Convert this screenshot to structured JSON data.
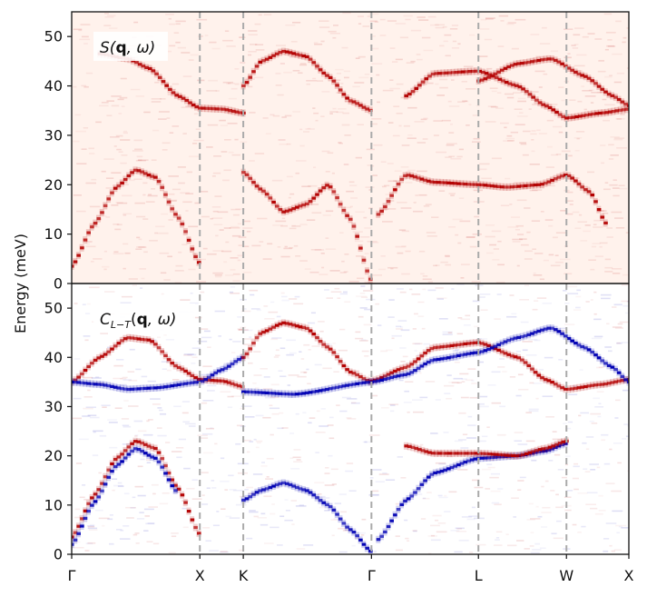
{
  "figure": {
    "ylabel": "Energy (meV)",
    "background": "#ffffff",
    "colors": {
      "top_panel_base": "#fff2ec",
      "red": "#b30000",
      "blue": "#0000b3",
      "guide": "#aaaaaa"
    }
  },
  "chart_data": [
    {
      "type": "heatmap",
      "panel": "top",
      "label": "S(q, ω)",
      "label_math": {
        "base": "S(",
        "bold": "q",
        "rest": ", ω)"
      },
      "colormap": "Reds",
      "ylim": [
        0,
        55
      ],
      "yticks": [
        0,
        10,
        20,
        30,
        40,
        50
      ],
      "x_range": [
        0,
        1
      ],
      "high_symbol_points": [
        {
          "label": "Γ",
          "x": 0.0
        },
        {
          "label": "X",
          "x": 0.23
        },
        {
          "label": "K",
          "x": 0.308
        },
        {
          "label": "Γ",
          "x": 0.538
        },
        {
          "label": "L",
          "x": 0.73
        },
        {
          "label": "W",
          "x": 0.888
        },
        {
          "label": "X",
          "x": 1.0
        }
      ],
      "branches": [
        {
          "name": "upper_1",
          "sign": 1,
          "points": [
            [
              0.05,
              46.5
            ],
            [
              0.1,
              45.5
            ],
            [
              0.14,
              43.5
            ],
            [
              0.19,
              38
            ],
            [
              0.23,
              35.5
            ],
            [
              0.27,
              35.3
            ],
            [
              0.308,
              34.5
            ]
          ]
        },
        {
          "name": "upper_2",
          "sign": 1,
          "points": [
            [
              0.308,
              40
            ],
            [
              0.34,
              45
            ],
            [
              0.38,
              47
            ],
            [
              0.42,
              46
            ],
            [
              0.46,
              42
            ],
            [
              0.5,
              37
            ],
            [
              0.538,
              35
            ]
          ]
        },
        {
          "name": "upper_3",
          "sign": 1,
          "points": [
            [
              0.6,
              38
            ],
            [
              0.65,
              42.5
            ],
            [
              0.73,
              43
            ],
            [
              0.8,
              40
            ],
            [
              0.85,
              36
            ],
            [
              0.888,
              33.5
            ],
            [
              0.95,
              34.5
            ],
            [
              1.0,
              35.3
            ]
          ]
        },
        {
          "name": "upper_4",
          "sign": 1,
          "points": [
            [
              0.73,
              41
            ],
            [
              0.8,
              44.5
            ],
            [
              0.86,
              45.5
            ],
            [
              0.92,
              42
            ],
            [
              0.97,
              38
            ],
            [
              1.0,
              36
            ]
          ]
        },
        {
          "name": "lower_1",
          "sign": 1,
          "points": [
            [
              0.0,
              3.5
            ],
            [
              0.04,
              12
            ],
            [
              0.08,
              19.5
            ],
            [
              0.115,
              23
            ],
            [
              0.15,
              21.5
            ],
            [
              0.19,
              13.5
            ],
            [
              0.23,
              4
            ]
          ]
        },
        {
          "name": "lower_2",
          "sign": 1,
          "points": [
            [
              0.308,
              22.5
            ],
            [
              0.34,
              19
            ],
            [
              0.38,
              14.5
            ],
            [
              0.42,
              16
            ],
            [
              0.46,
              20
            ],
            [
              0.5,
              13
            ],
            [
              0.538,
              0.5
            ]
          ]
        },
        {
          "name": "lower_3",
          "sign": 1,
          "points": [
            [
              0.55,
              14
            ],
            [
              0.6,
              22
            ],
            [
              0.65,
              20.5
            ],
            [
              0.73,
              20
            ],
            [
              0.78,
              19.5
            ],
            [
              0.84,
              20
            ],
            [
              0.888,
              22
            ],
            [
              0.93,
              18.5
            ],
            [
              0.96,
              12
            ]
          ]
        }
      ]
    },
    {
      "type": "heatmap",
      "panel": "bottom",
      "label": "C_{L−T}(q, ω)",
      "label_math": {
        "base": "C",
        "sub": "L−T",
        "open": "(",
        "bold": "q",
        "rest": ", ω)"
      },
      "colormap": "seismic (blue negative, red positive)",
      "ylim": [
        0,
        55
      ],
      "yticks": [
        0,
        10,
        20,
        30,
        40,
        50
      ],
      "x_range": [
        0,
        1
      ],
      "high_symbol_points": [
        {
          "label": "Γ",
          "x": 0.0
        },
        {
          "label": "X",
          "x": 0.23
        },
        {
          "label": "K",
          "x": 0.308
        },
        {
          "label": "Γ",
          "x": 0.538
        },
        {
          "label": "L",
          "x": 0.73
        },
        {
          "label": "W",
          "x": 0.888
        },
        {
          "label": "X",
          "x": 1.0
        }
      ],
      "branches": [
        {
          "name": "red_upper_1",
          "sign": 1,
          "points": [
            [
              0.0,
              35
            ],
            [
              0.05,
              40
            ],
            [
              0.1,
              44
            ],
            [
              0.14,
              43.5
            ],
            [
              0.19,
              38
            ],
            [
              0.23,
              35.5
            ],
            [
              0.27,
              35.2
            ],
            [
              0.308,
              34
            ]
          ]
        },
        {
          "name": "blue_upper_1",
          "sign": -1,
          "points": [
            [
              0.0,
              35
            ],
            [
              0.05,
              34.5
            ],
            [
              0.1,
              33.5
            ],
            [
              0.15,
              33.8
            ],
            [
              0.23,
              35
            ],
            [
              0.27,
              37.5
            ],
            [
              0.308,
              40
            ]
          ]
        },
        {
          "name": "red_dome",
          "sign": 1,
          "points": [
            [
              0.308,
              40
            ],
            [
              0.34,
              45
            ],
            [
              0.38,
              47
            ],
            [
              0.42,
              46
            ],
            [
              0.46,
              42
            ],
            [
              0.5,
              37
            ],
            [
              0.538,
              35
            ]
          ]
        },
        {
          "name": "blue_flat",
          "sign": -1,
          "points": [
            [
              0.308,
              33
            ],
            [
              0.4,
              32.5
            ],
            [
              0.538,
              35
            ]
          ]
        },
        {
          "name": "red_upper_3",
          "sign": 1,
          "points": [
            [
              0.538,
              35.2
            ],
            [
              0.6,
              38
            ],
            [
              0.65,
              42
            ],
            [
              0.73,
              43
            ],
            [
              0.8,
              40
            ],
            [
              0.85,
              35.5
            ],
            [
              0.888,
              33.5
            ],
            [
              0.95,
              34.5
            ],
            [
              1.0,
              35.5
            ]
          ]
        },
        {
          "name": "blue_upper_3",
          "sign": -1,
          "points": [
            [
              0.538,
              35
            ],
            [
              0.6,
              36.5
            ],
            [
              0.65,
              39.5
            ],
            [
              0.73,
              41
            ],
            [
              0.8,
              44
            ],
            [
              0.86,
              46
            ],
            [
              0.92,
              42
            ],
            [
              0.97,
              38
            ],
            [
              1.0,
              35
            ]
          ]
        },
        {
          "name": "red_lower_1",
          "sign": 1,
          "points": [
            [
              0.0,
              3.5
            ],
            [
              0.04,
              12
            ],
            [
              0.08,
              19.5
            ],
            [
              0.115,
              23
            ],
            [
              0.15,
              21.5
            ],
            [
              0.19,
              13.5
            ],
            [
              0.23,
              4
            ]
          ]
        },
        {
          "name": "blue_lower_1",
          "sign": -1,
          "points": [
            [
              0.0,
              2
            ],
            [
              0.04,
              10.5
            ],
            [
              0.08,
              18
            ],
            [
              0.115,
              21.5
            ],
            [
              0.15,
              19.5
            ],
            [
              0.19,
              12.5
            ]
          ]
        },
        {
          "name": "blue_lower_2",
          "sign": -1,
          "points": [
            [
              0.308,
              11
            ],
            [
              0.34,
              13
            ],
            [
              0.38,
              14.5
            ],
            [
              0.42,
              13
            ],
            [
              0.46,
              10
            ],
            [
              0.5,
              5
            ],
            [
              0.538,
              0.5
            ]
          ]
        },
        {
          "name": "blue_lower_3",
          "sign": -1,
          "points": [
            [
              0.55,
              3
            ],
            [
              0.6,
              11
            ],
            [
              0.65,
              16.5
            ],
            [
              0.73,
              19.5
            ],
            [
              0.8,
              20
            ],
            [
              0.85,
              21
            ],
            [
              0.888,
              22.5
            ]
          ]
        },
        {
          "name": "red_lower_3",
          "sign": 1,
          "points": [
            [
              0.6,
              22
            ],
            [
              0.65,
              20.5
            ],
            [
              0.73,
              20.5
            ],
            [
              0.8,
              20
            ],
            [
              0.85,
              21.5
            ],
            [
              0.888,
              23
            ]
          ]
        }
      ]
    }
  ]
}
